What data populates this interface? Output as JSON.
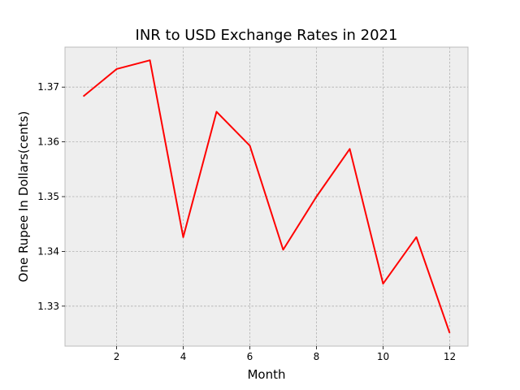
{
  "chart_data": {
    "type": "line",
    "title": "INR to USD Exchange Rates in 2021",
    "xlabel": "Month",
    "ylabel": "One Rupee In Dollars(cents)",
    "x": [
      1,
      2,
      3,
      4,
      5,
      6,
      7,
      8,
      9,
      10,
      11,
      12
    ],
    "series": [
      {
        "values": [
          1.3683,
          1.3733,
          1.3749,
          1.3426,
          1.3655,
          1.3593,
          1.3403,
          1.35,
          1.3587,
          1.3341,
          1.3426,
          1.3251
        ]
      }
    ],
    "xlim": [
      0.45,
      12.55
    ],
    "ylim": [
      1.3227,
      1.3773
    ],
    "xticks": [
      "2",
      "4",
      "6",
      "8",
      "10",
      "12"
    ],
    "yticks": [
      "1.33",
      "1.34",
      "1.35",
      "1.36",
      "1.37"
    ],
    "grid": true,
    "colors": {
      "line": "#ff0000",
      "plot_background": "#eeeeee",
      "frame": "#bcbcbc",
      "grid": "#b0b0b0"
    }
  }
}
